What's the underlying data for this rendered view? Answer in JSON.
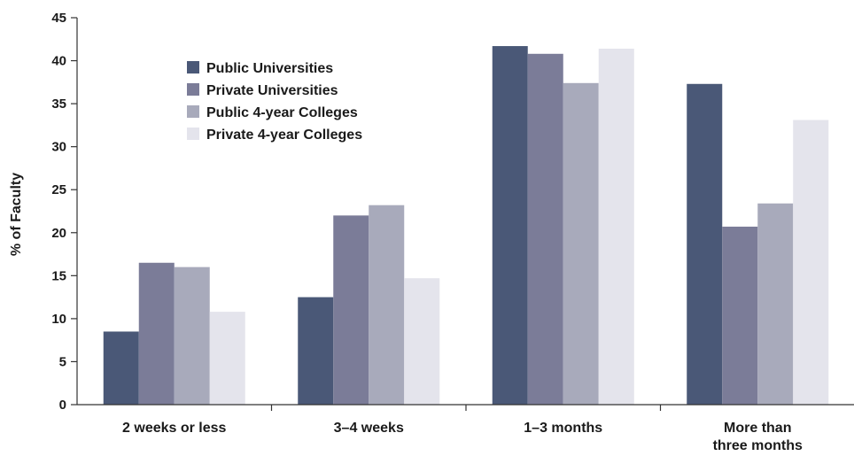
{
  "chart_data": {
    "type": "bar",
    "title": "",
    "xlabel": "",
    "ylabel": "% of Faculty",
    "ylim": [
      0,
      45
    ],
    "yticks": [
      0,
      5,
      10,
      15,
      20,
      25,
      30,
      35,
      40,
      45
    ],
    "grid": false,
    "legend_position": "top-left",
    "categories": [
      [
        "2 weeks or less"
      ],
      [
        "3–4 weeks"
      ],
      [
        "1–3 months"
      ],
      [
        "More than",
        "three months"
      ]
    ],
    "series": [
      {
        "name": "Public Universities",
        "color": "#4a5877",
        "values": [
          8.5,
          12.5,
          41.7,
          37.3
        ]
      },
      {
        "name": "Private Universities",
        "color": "#7b7c98",
        "values": [
          16.5,
          22.0,
          40.8,
          20.7
        ]
      },
      {
        "name": "Public 4-year Colleges",
        "color": "#a8aabb",
        "values": [
          16.0,
          23.2,
          37.4,
          23.4
        ]
      },
      {
        "name": "Private 4-year Colleges",
        "color": "#e4e4ec",
        "values": [
          10.8,
          14.7,
          41.4,
          33.1
        ]
      }
    ]
  }
}
